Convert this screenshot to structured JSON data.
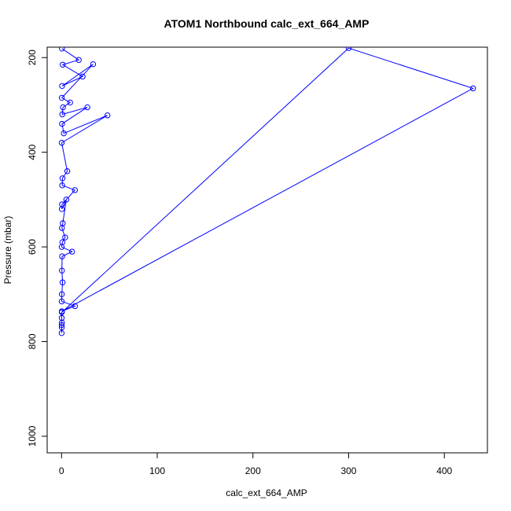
{
  "chart_data": {
    "type": "line",
    "title": "ATOM1 Northbound calc_ext_664_AMP",
    "xlabel": "calc_ext_664_AMP",
    "ylabel": "Pressure (mbar)",
    "xlim": [
      -15,
      445
    ],
    "ylim": [
      1035,
      178
    ],
    "y_reversed": true,
    "x_ticks": [
      0,
      100,
      200,
      300,
      400
    ],
    "y_ticks": [
      200,
      400,
      600,
      800,
      1000
    ],
    "grid": false,
    "legend": "none",
    "series": [
      {
        "color": "#0000ff",
        "marker": "open-circle",
        "x": [
          0.4,
          18,
          1.2,
          22,
          0.6,
          33,
          0.3,
          9,
          1.5,
          0.8,
          27,
          0.5,
          2.4,
          48,
          0.2,
          6,
          1,
          0.7,
          14,
          0.5,
          0.3,
          5,
          1.3,
          0.4,
          3.8,
          0.9,
          0.2,
          11,
          0.6,
          0.4,
          1.1,
          0.3,
          0.2,
          14,
          0.3,
          430,
          300,
          0.3,
          0.2,
          0.4,
          0.2,
          0.3,
          0.1
        ],
        "y": [
          181,
          205,
          215,
          240,
          260,
          214,
          285,
          295,
          305,
          320,
          305,
          340,
          360,
          322,
          380,
          440,
          455,
          470,
          480,
          510,
          520,
          500,
          550,
          560,
          580,
          590,
          600,
          610,
          620,
          650,
          675,
          700,
          715,
          725,
          736,
          265,
          180,
          738,
          750,
          760,
          765,
          770,
          782
        ]
      }
    ]
  }
}
